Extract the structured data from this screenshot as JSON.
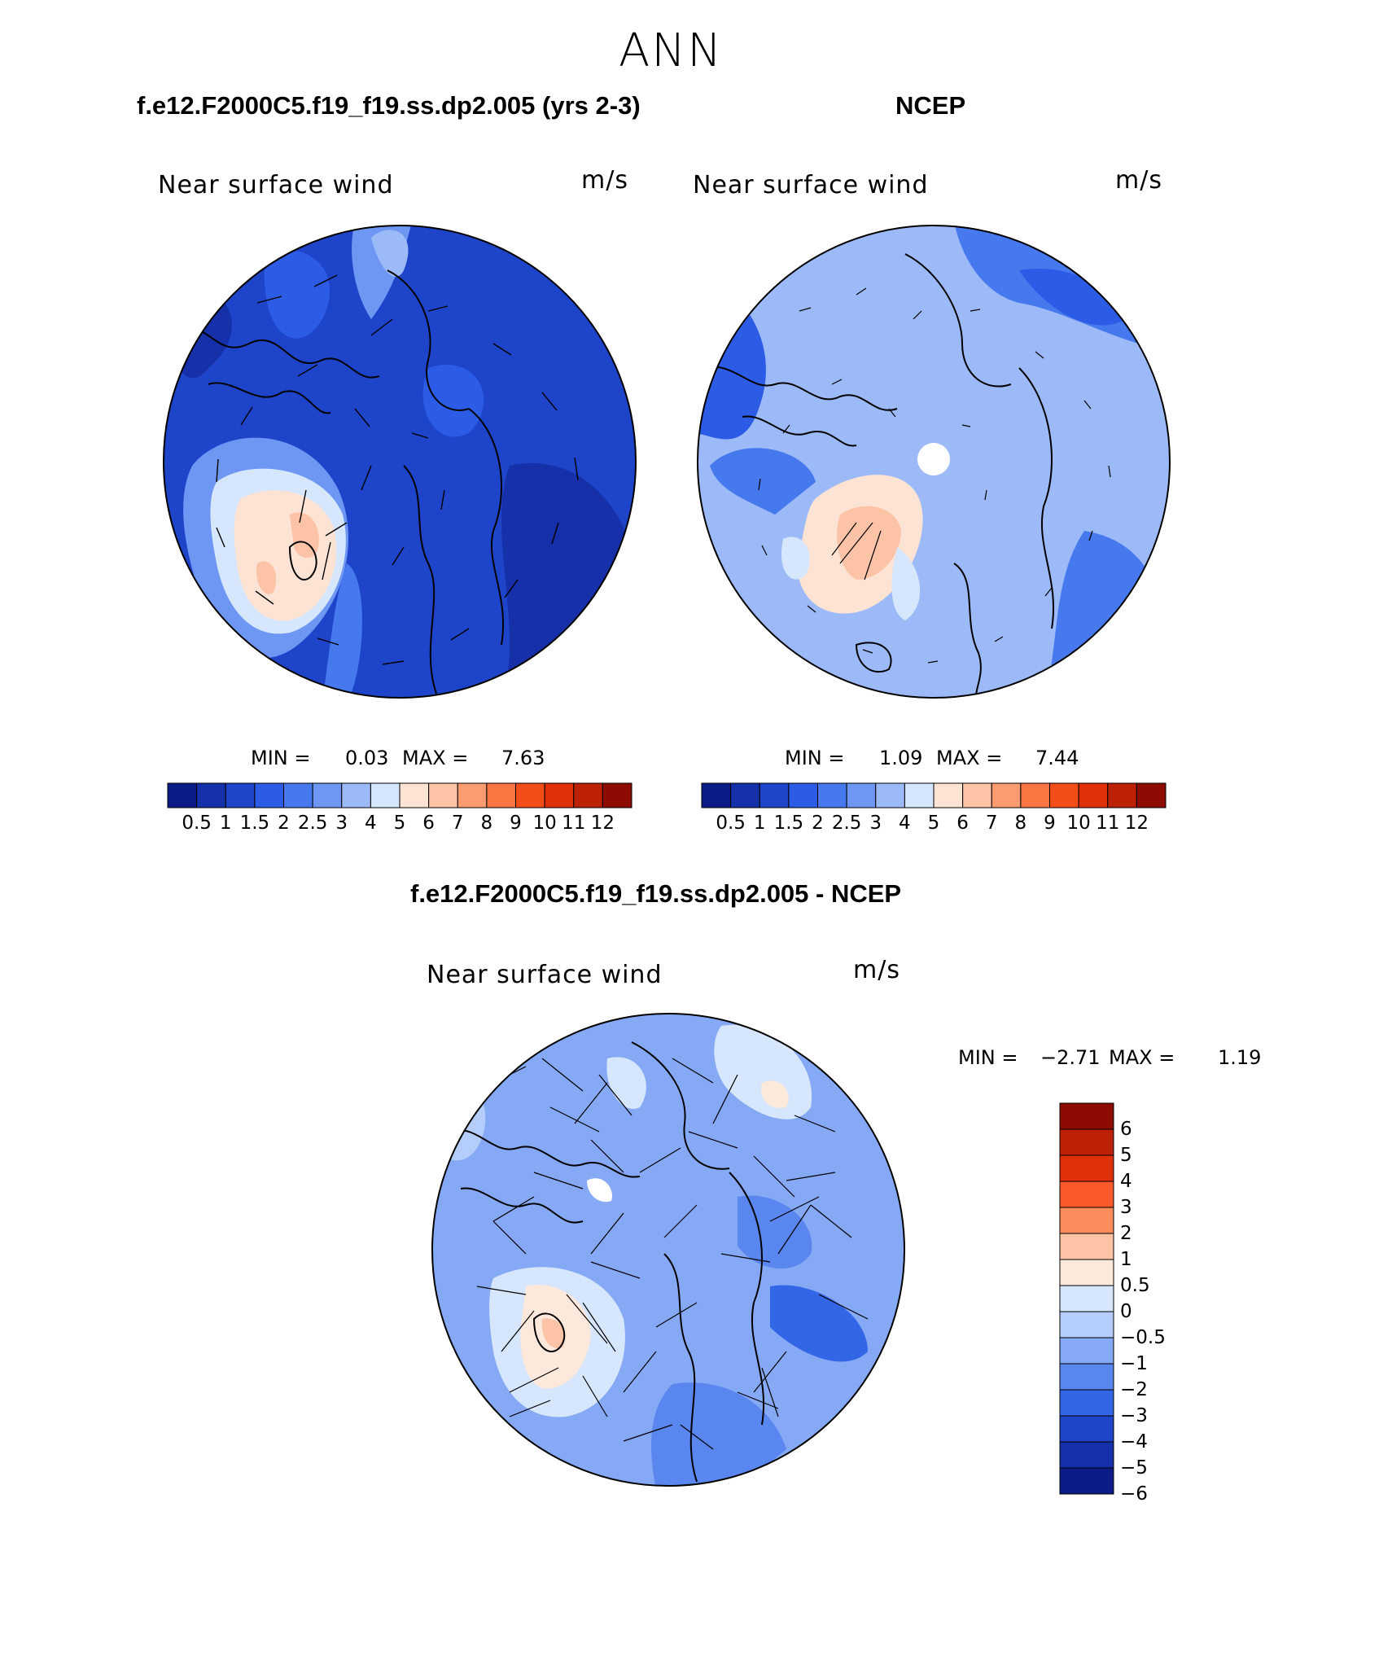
{
  "main_title": "ANN",
  "panels": [
    {
      "case_title": "f.e12.F2000C5.f19_f19.ss.dp2.005 (yrs 2-3)",
      "title": "Near surface wind",
      "units": "m/s",
      "min_label": "MIN =",
      "min_value": "0.03",
      "max_label": "MAX =",
      "max_value": "7.63",
      "colorbar": {
        "colors": [
          "#0b1b88",
          "#1530a8",
          "#1e45c9",
          "#2c5be6",
          "#4678ee",
          "#6e96f3",
          "#9dbaf8",
          "#d6e6fd",
          "#fde3d3",
          "#fcc3a7",
          "#fb9c70",
          "#f97542",
          "#f34d18",
          "#e0300a",
          "#bc2106",
          "#8c0c03"
        ],
        "tick_labels": [
          "0.5",
          "1",
          "1.5",
          "2",
          "2.5",
          "3",
          "4",
          "5",
          "6",
          "7",
          "8",
          "9",
          "10",
          "11",
          "12"
        ]
      }
    },
    {
      "case_title": "NCEP",
      "title": "Near surface wind",
      "units": "m/s",
      "min_label": "MIN =",
      "min_value": "1.09",
      "max_label": "MAX =",
      "max_value": "7.44",
      "colorbar": {
        "colors": [
          "#0b1b88",
          "#1530a8",
          "#1e45c9",
          "#2c5be6",
          "#4678ee",
          "#6e96f3",
          "#9dbaf8",
          "#d6e6fd",
          "#fde3d3",
          "#fcc3a7",
          "#fb9c70",
          "#f97542",
          "#f34d18",
          "#e0300a",
          "#bc2106",
          "#8c0c03"
        ],
        "tick_labels": [
          "0.5",
          "1",
          "1.5",
          "2",
          "2.5",
          "3",
          "4",
          "5",
          "6",
          "7",
          "8",
          "9",
          "10",
          "11",
          "12"
        ]
      }
    },
    {
      "case_title": "f.e12.F2000C5.f19_f19.ss.dp2.005 - NCEP",
      "title": "Near surface wind",
      "units": "m/s",
      "min_label": "MIN =",
      "min_value": "−2.71",
      "max_label": "MAX =",
      "max_value": "1.19",
      "colorbar": {
        "colors": [
          "#8c0c03",
          "#bc2106",
          "#e0300a",
          "#f9582a",
          "#fb8c5c",
          "#fcc3a7",
          "#fde8dc",
          "#d6e6fd",
          "#b4cdfa",
          "#86a9f5",
          "#5a86ef",
          "#3366e6",
          "#1e45c9",
          "#1530a8",
          "#0b1b88"
        ],
        "tick_labels": [
          "6",
          "5",
          "4",
          "3",
          "2",
          "1",
          "0.5",
          "0",
          "−0.5",
          "−1",
          "−2",
          "−3",
          "−4",
          "−5",
          "−6"
        ]
      }
    }
  ],
  "map_colors": {
    "land_outline": "#000000",
    "deep_blue": "#1e45c9",
    "mid_blue": "#4678ee",
    "light_blue": "#9dbaf8",
    "pale_blue": "#d6e6fd",
    "peach": "#fcc3a7"
  }
}
